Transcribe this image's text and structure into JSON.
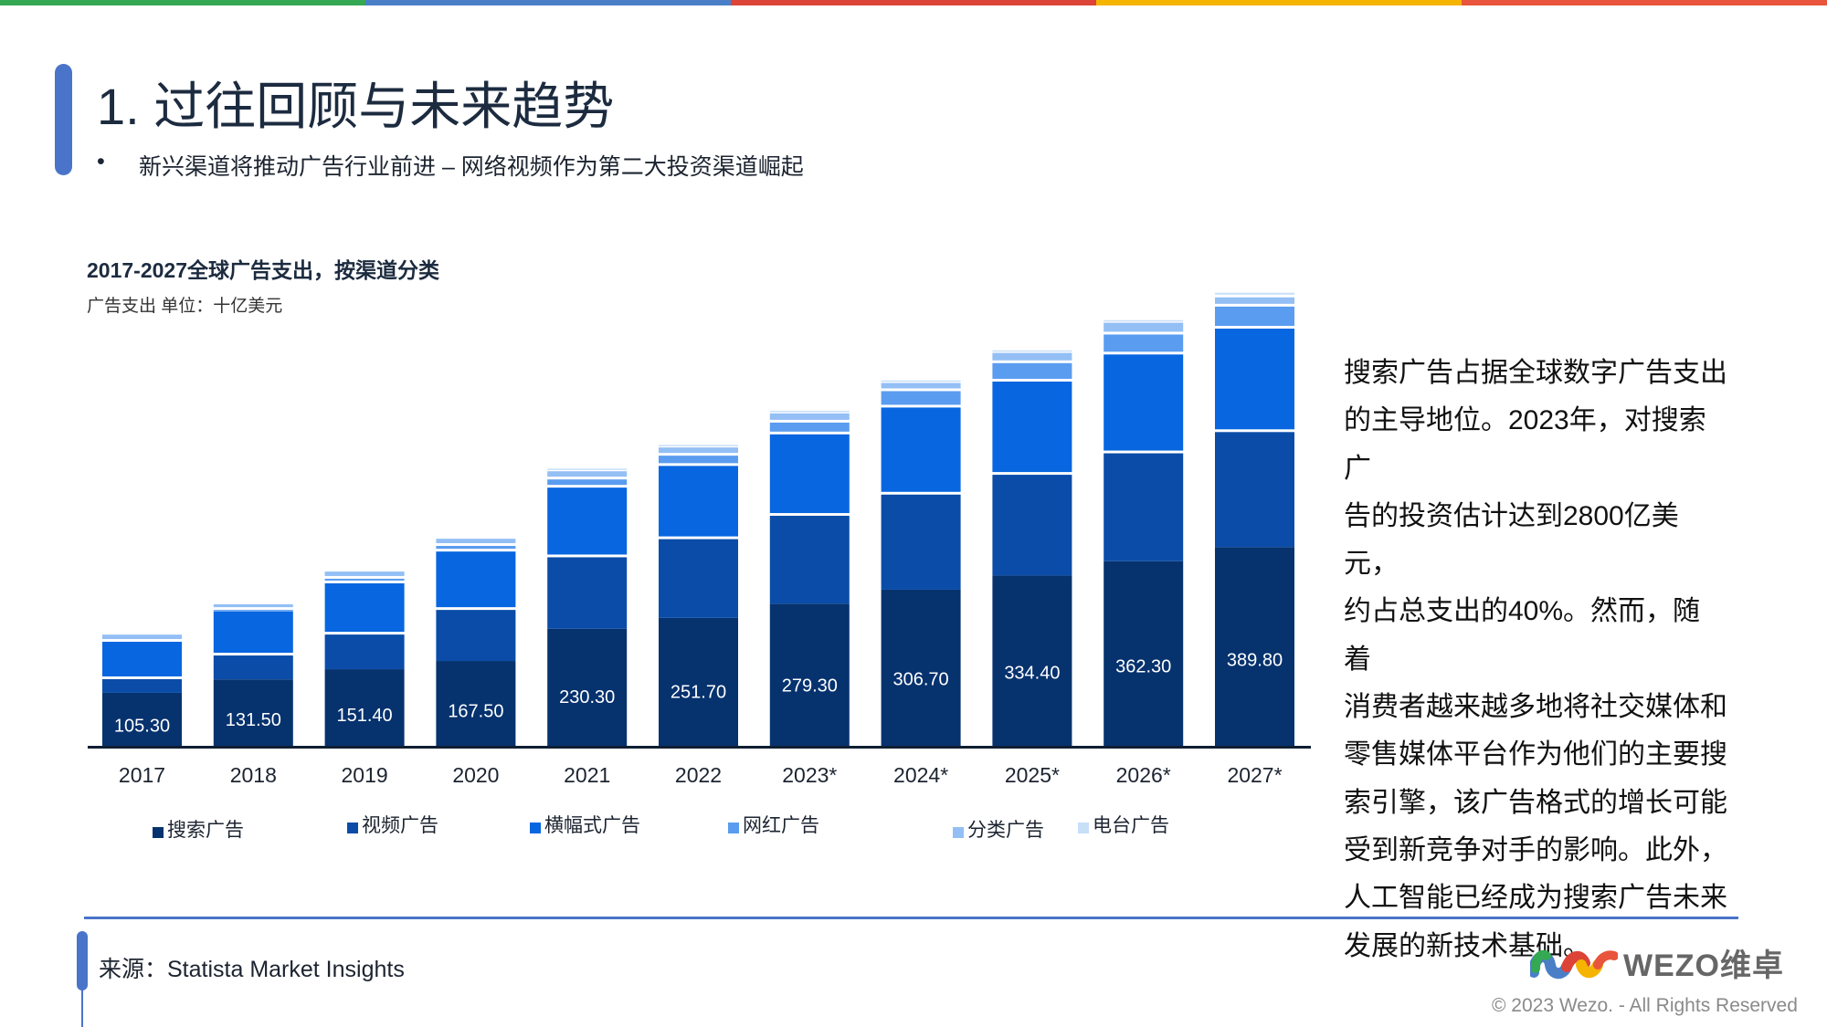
{
  "header": {
    "title": "1. 过往回顾与未来趋势",
    "bullet": "•",
    "subtitle": "新兴渠道将推动广告行业前进 – 网络视频作为第二大投资渠道崛起",
    "top_bar_colors": [
      "#34a853",
      "#4a7fc8",
      "#db4437",
      "#f4b400",
      "#e8553c"
    ]
  },
  "chart_data": {
    "type": "bar",
    "stacked": true,
    "title": "2017-2027全球广告支出，按渠道分类",
    "subtitle": "广告支出 单位：十亿美元",
    "categories": [
      "2017",
      "2018",
      "2019",
      "2020",
      "2021",
      "2022",
      "2023*",
      "2024*",
      "2025*",
      "2026*",
      "2027*"
    ],
    "series": [
      {
        "name": "搜索广告",
        "color": "#06326e",
        "values": [
          105.3,
          131.5,
          151.4,
          167.5,
          230.3,
          251.7,
          279.3,
          306.7,
          334.4,
          362.3,
          389.8
        ],
        "labels": [
          "105.30",
          "131.50",
          "151.40",
          "167.50",
          "230.30",
          "251.70",
          "279.30",
          "306.70",
          "334.40",
          "362.30",
          "389.80"
        ]
      },
      {
        "name": "视频广告",
        "color": "#0a4ca8",
        "values": [
          32,
          52,
          73,
          105,
          145,
          159,
          177,
          191,
          202,
          216,
          230
        ]
      },
      {
        "name": "横幅式广告",
        "color": "#0866e0",
        "values": [
          73,
          86,
          100,
          114,
          136,
          143,
          159,
          170,
          182,
          193,
          202
        ]
      },
      {
        "name": "网红广告",
        "color": "#5a9cf0",
        "values": [
          0,
          3,
          9,
          11,
          16,
          20,
          23,
          32,
          36,
          39,
          43
        ]
      },
      {
        "name": "分类广告",
        "color": "#93bff5",
        "values": [
          14,
          11,
          14,
          14,
          16,
          16,
          18,
          16,
          20,
          23,
          18
        ]
      },
      {
        "name": "电台广告",
        "color": "#c8dff8",
        "values": [
          0,
          0,
          0,
          0,
          5,
          5,
          5,
          5,
          5,
          5,
          9
        ]
      }
    ],
    "ylim": [
      0,
      1050
    ],
    "grid": false,
    "legend": "bottom"
  },
  "commentary": [
    "搜索广告占据全球数字广告支出",
    "的主导地位。2023年，对搜索广",
    "告的投资估计达到2800亿美元，",
    "约占总支出的40%。然而，随着",
    "消费者越来越多地将社交媒体和",
    "零售媒体平台作为他们的主要搜",
    "索引擎，该广告格式的增长可能",
    "受到新竞争对手的影响。此外，",
    "人工智能已经成为搜索广告未来",
    "发展的新技术基础。"
  ],
  "footer": {
    "source": "来源：Statista Market Insights",
    "logo_text": "WEZO维卓",
    "copyright": "© 2023 Wezo. - All Rights Reserved"
  }
}
